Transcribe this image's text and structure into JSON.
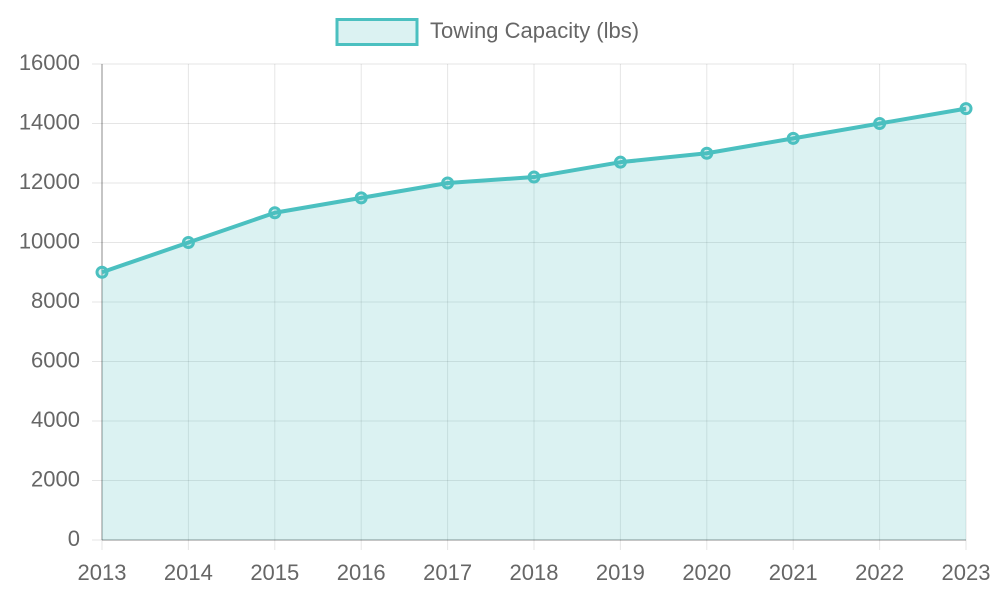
{
  "chart_data": {
    "type": "line",
    "categories": [
      "2013",
      "2014",
      "2015",
      "2016",
      "2017",
      "2018",
      "2019",
      "2020",
      "2021",
      "2022",
      "2023"
    ],
    "series": [
      {
        "name": "Towing Capacity (lbs)",
        "color": "#4bc0c0",
        "values": [
          9000,
          10000,
          11000,
          11500,
          12000,
          12200,
          12700,
          13000,
          13500,
          14000,
          14500
        ]
      }
    ],
    "fill": true,
    "ylim": [
      0,
      16000
    ],
    "yticks": [
      0,
      2000,
      4000,
      6000,
      8000,
      10000,
      12000,
      14000,
      16000
    ],
    "grid": true,
    "legend": "top"
  }
}
